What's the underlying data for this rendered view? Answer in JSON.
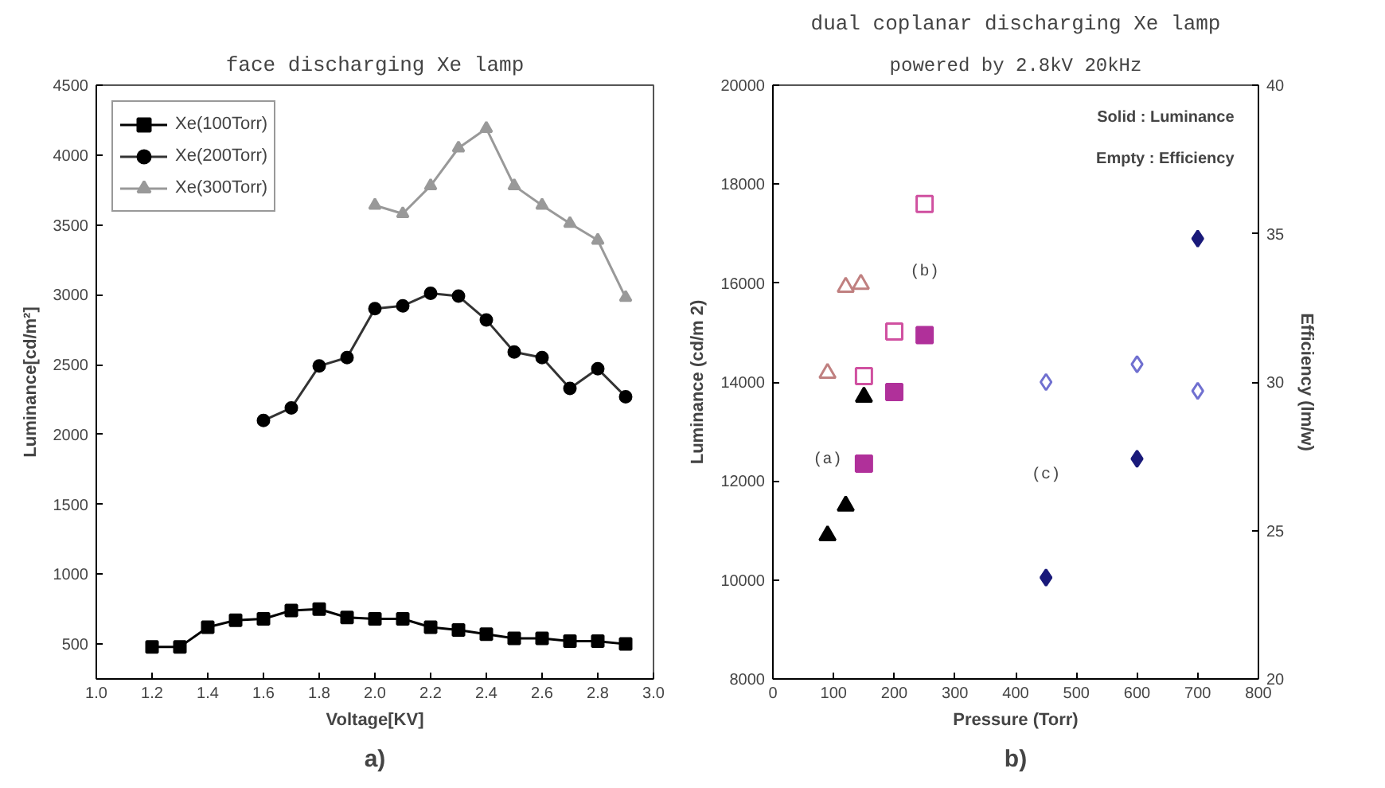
{
  "chart_data": [
    {
      "type": "line",
      "title": "face discharging Xe lamp",
      "xlabel": "Voltage[KV]",
      "ylabel": "Luminance[cd/m²]",
      "xlim": [
        1.0,
        3.0
      ],
      "xticks": [
        {
          "value": 1.0,
          "label": "1.0"
        },
        1.2,
        1.4,
        1.6,
        1.8,
        {
          "value": 2.0,
          "label": "2.0"
        },
        2.2,
        2.4,
        2.6,
        2.8,
        {
          "value": 3.0,
          "label": "3.0"
        }
      ],
      "ylim": [
        250,
        4500
      ],
      "yticks": [
        500,
        1000,
        1500,
        2000,
        2500,
        3000,
        3500,
        4000,
        4500
      ],
      "grid": false,
      "legend": "top left",
      "line_style": "solid",
      "series": [
        {
          "name": "Xe(100Torr)",
          "color": "#000000",
          "marker": "square",
          "x": [
            1.2,
            1.3,
            1.4,
            1.5,
            1.6,
            1.7,
            1.8,
            1.9,
            2.0,
            2.1,
            2.2,
            2.3,
            2.4,
            2.5,
            2.6,
            2.7,
            2.8,
            2.9
          ],
          "values": [
            480,
            480,
            620,
            670,
            680,
            740,
            750,
            690,
            680,
            680,
            620,
            600,
            570,
            540,
            540,
            520,
            520,
            500
          ]
        },
        {
          "name": "Xe(200Torr)",
          "color": "#333333",
          "marker": "circle",
          "x": [
            1.6,
            1.7,
            1.8,
            1.9,
            2.0,
            2.1,
            2.2,
            2.3,
            2.4,
            2.5,
            2.6,
            2.7,
            2.8,
            2.9
          ],
          "values": [
            2100,
            2190,
            2490,
            2550,
            2900,
            2920,
            3010,
            2990,
            2820,
            2590,
            2550,
            2330,
            2470,
            2270
          ]
        },
        {
          "name": "Xe(300Torr)",
          "color": "#999999",
          "marker": "triangle",
          "x": [
            2.0,
            2.1,
            2.2,
            2.3,
            2.4,
            2.5,
            2.6,
            2.7,
            2.8,
            2.9
          ],
          "values": [
            3640,
            3580,
            3780,
            4050,
            4190,
            3780,
            3640,
            3510,
            3390,
            2980
          ]
        }
      ],
      "annotations": [
        "a)"
      ]
    },
    {
      "type": "scatter",
      "title": "dual coplanar discharging Xe lamp",
      "subtitle": "powered by 2.8kV 20kHz",
      "xlabel": "Pressure (Torr)",
      "ylabel": "Luminance (cd/m 2)",
      "y2label": "Efficiency (lm/w)",
      "xlim": [
        0,
        800
      ],
      "xticks": [
        0,
        100,
        200,
        300,
        400,
        500,
        600,
        700,
        800
      ],
      "ylim": [
        8000,
        20000
      ],
      "yticks": [
        8000,
        10000,
        12000,
        14000,
        16000,
        18000,
        20000
      ],
      "y2lim": [
        20,
        40
      ],
      "y2ticks": [
        20,
        25,
        30,
        35,
        40
      ],
      "grid": false,
      "legend": false,
      "series": [
        {
          "color": "#000000",
          "marker": "triangle",
          "x": [
            90,
            120,
            150
          ],
          "values": [
            10900,
            11500,
            13700
          ]
        },
        {
          "color": "#b0309a",
          "marker": "square",
          "x": [
            150,
            200,
            250
          ],
          "values": [
            12350,
            13800,
            14950
          ]
        },
        {
          "color": "#1a1a7a",
          "marker": "diamond",
          "x": [
            450,
            600,
            700
          ],
          "values": [
            10050,
            12450,
            16900
          ]
        },
        {
          "color": "#c08080",
          "marker": "triangle",
          "axis": "y2",
          "x": [
            90,
            120,
            145
          ],
          "values": [
            30.3,
            33.2,
            33.3
          ]
        },
        {
          "color": "#d050a0",
          "marker": "square",
          "axis": "y2",
          "x": [
            150,
            200,
            250
          ],
          "values": [
            30.2,
            31.7,
            36.0
          ]
        },
        {
          "color": "#7070d0",
          "marker": "diamond",
          "axis": "y2",
          "x": [
            450,
            600,
            700
          ],
          "values": [
            30.0,
            30.6,
            29.7
          ]
        }
      ],
      "annotations": [
        {
          "text": "(a)",
          "x": 90,
          "y": 12400
        },
        {
          "text": "(b)",
          "x": 250,
          "y": 16200
        },
        {
          "text": "(c)",
          "x": 450,
          "y": 12100
        },
        "Solid : Luminance",
        "Empty : Efficiency",
        "b)"
      ]
    }
  ]
}
